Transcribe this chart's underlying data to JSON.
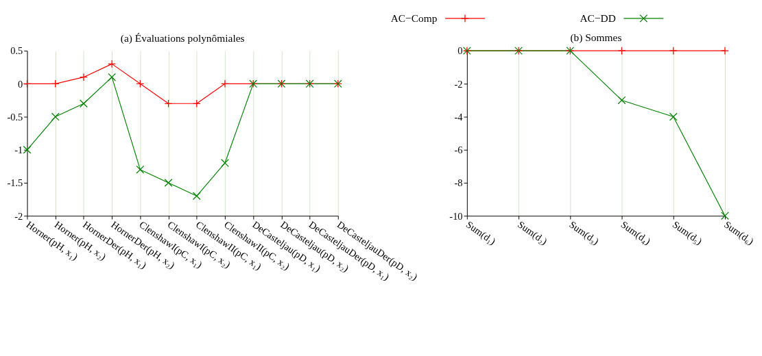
{
  "chart_data": [
    {
      "type": "line",
      "title": "(a) Évaluations polynômiales",
      "categories": [
        "Horner(pH, x₁)",
        "Horner(pH, x₂)",
        "HornerDer(pH, x₁)",
        "HornerDer(pH, x₂)",
        "ClenshawI(pC, x₁)",
        "ClenshawI(pC, x₂)",
        "ClenshawII(pC, x₁)",
        "ClenshawII(pC, x₂)",
        "DeCasteljau(pD, x₁)",
        "DeCasteljau(pD, x₂)",
        "DeCasteljauDer(pD, x₁)",
        "DeCasteljauDer(pD, x₂)"
      ],
      "series": [
        {
          "name": "AC−Comp",
          "color": "#ff0000",
          "marker": "cross",
          "values": [
            0,
            0,
            0.1,
            0.3,
            0,
            -0.3,
            -0.3,
            0,
            0,
            0,
            0,
            0
          ]
        },
        {
          "name": "AC−DD",
          "color": "#008000",
          "marker": "x",
          "values": [
            -1,
            -0.5,
            -0.3,
            0.1,
            -1.3,
            -1.5,
            -1.7,
            -1.2,
            0,
            0,
            0,
            0
          ]
        }
      ],
      "ylim": [
        -2,
        0.5
      ],
      "yticks": [
        -2,
        -1.5,
        -1,
        -0.5,
        0,
        0.5
      ],
      "grid": "x",
      "legend": "top right"
    },
    {
      "type": "line",
      "title": "(b) Sommes",
      "categories": [
        "Sum(d₁)",
        "Sum(d₂)",
        "Sum(d₃)",
        "Sum(d₄)",
        "Sum(d₅)",
        "Sum(d₆)"
      ],
      "series": [
        {
          "name": "AC−Comp",
          "color": "#ff0000",
          "marker": "cross",
          "values": [
            0,
            0,
            0,
            0,
            0,
            0
          ]
        },
        {
          "name": "AC−DD",
          "color": "#008000",
          "marker": "x",
          "values": [
            0,
            0,
            0,
            -3,
            -4,
            -10
          ]
        }
      ],
      "ylim": [
        -10,
        0
      ],
      "yticks": [
        -10,
        -8,
        -6,
        -4,
        -2,
        0
      ],
      "grid": "x"
    }
  ]
}
